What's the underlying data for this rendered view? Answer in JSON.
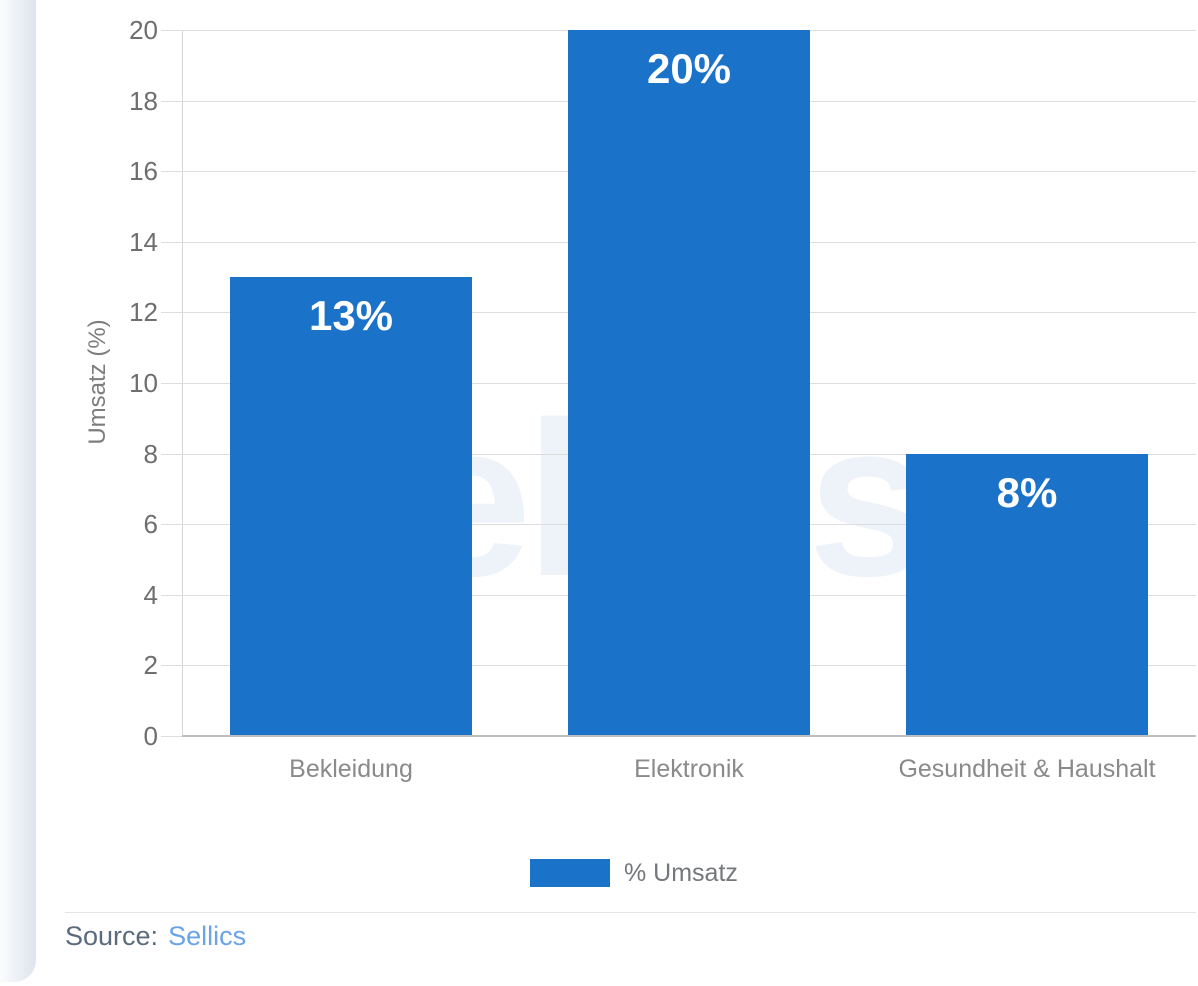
{
  "chart_data": {
    "type": "bar",
    "title": "",
    "categories": [
      "Bekleidung",
      "Elektronik",
      "Gesundheit & Haushalt"
    ],
    "series": [
      {
        "name": "% Umsatz",
        "values": [
          13,
          20,
          8
        ]
      }
    ],
    "value_labels": [
      "13%",
      "20%",
      "8%"
    ],
    "xlabel": "",
    "ylabel": "Umsatz (%)",
    "ylim": [
      0,
      20
    ],
    "ytick_step": 2,
    "grid": "horizontal",
    "legend_position": "bottom",
    "legend_label": "% Umsatz"
  },
  "watermark": {
    "text": "sellics"
  },
  "legend": {
    "label": "% Umsatz"
  },
  "source": {
    "label": "Source:",
    "link_text": "Sellics"
  },
  "colors": {
    "bar": "#1b72c9",
    "grid": "#dddddd",
    "axis_line": "#d6d6d6",
    "baseline": "#bdbfc1",
    "tick_label": "#6e6e6e",
    "category_label": "#8a8a8a",
    "axis_title": "#7d7d7d",
    "value_label": "#ffffff",
    "watermark": "#eef3fa",
    "legend_text": "#74777b",
    "source_label": "#5b6b7e",
    "source_link": "#6aa3e6",
    "divider": "#e4e4e4",
    "strip_from": "#fbfcfe",
    "strip_to": "#dde3ee"
  }
}
